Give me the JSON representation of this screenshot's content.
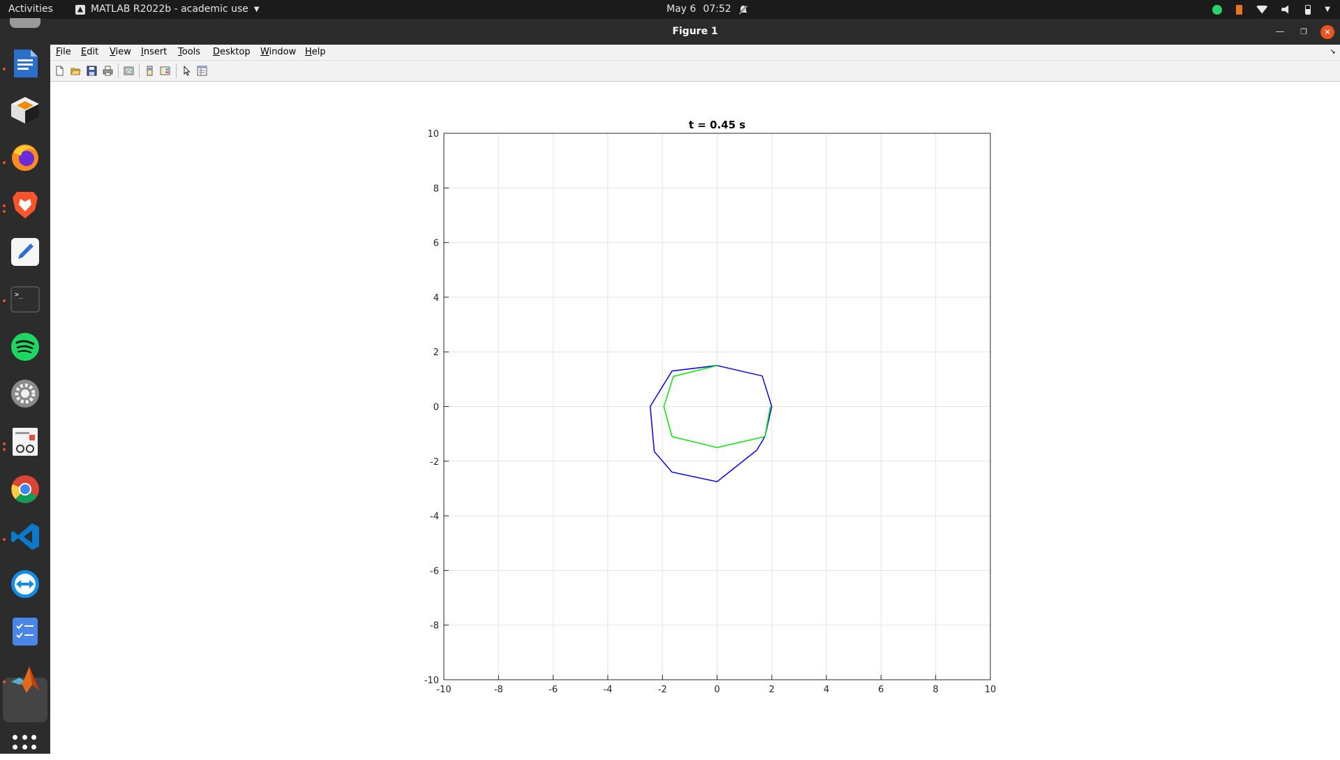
{
  "topbar": {
    "activities": "Activities",
    "app_name": "MATLAB R2022b - academic use",
    "date": "May 6",
    "time": "07:52"
  },
  "window": {
    "title": "Figure 1"
  },
  "menu": [
    "File",
    "Edit",
    "View",
    "Insert",
    "Tools",
    "Desktop",
    "Window",
    "Help"
  ],
  "toolbar": [
    "new-figure-icon",
    "open-file-icon",
    "save-icon",
    "print-icon",
    "link-plot-icon",
    "hide-plot-tools-icon",
    "show-plot-tools-icon",
    "edit-plot-icon",
    "open-property-inspector-icon"
  ],
  "dock": [
    "libreoffice-writer-icon",
    "virtualbox-icon",
    "firefox-icon",
    "brave-icon",
    "text-editor-icon",
    "terminal-icon",
    "spotify-icon",
    "settings-icon",
    "document-viewer-icon",
    "chrome-icon",
    "vscode-icon",
    "teamviewer-icon",
    "tasks-icon",
    "matlab-icon",
    "show-applications-icon"
  ],
  "chart_data": {
    "type": "line",
    "title": "t = 0.45 s",
    "xlabel": "",
    "ylabel": "",
    "xlim": [
      -10,
      10
    ],
    "ylim": [
      -10,
      10
    ],
    "xticks": [
      -10,
      -8,
      -6,
      -4,
      -2,
      0,
      2,
      4,
      6,
      8,
      10
    ],
    "yticks": [
      -10,
      -8,
      -6,
      -4,
      -2,
      0,
      2,
      4,
      6,
      8,
      10
    ],
    "grid": true,
    "series": [
      {
        "color": "#0000ff",
        "points": [
          [
            0,
            1.5
          ],
          [
            1.65,
            1.12
          ],
          [
            2.0,
            0
          ],
          [
            1.75,
            -1.1
          ],
          [
            1.45,
            -1.6
          ],
          [
            0,
            -2.75
          ],
          [
            -1.65,
            -2.4
          ],
          [
            -2.3,
            -1.65
          ],
          [
            -2.45,
            0
          ],
          [
            -1.65,
            1.3
          ],
          [
            0,
            1.5
          ]
        ]
      },
      {
        "color": "#00ee00",
        "points": [
          [
            0,
            1.5
          ],
          [
            -1.6,
            1.1
          ],
          [
            -1.95,
            0
          ],
          [
            -1.65,
            -1.1
          ],
          [
            0,
            -1.5
          ],
          [
            1.75,
            -1.1
          ],
          [
            1.95,
            0
          ]
        ]
      }
    ]
  }
}
